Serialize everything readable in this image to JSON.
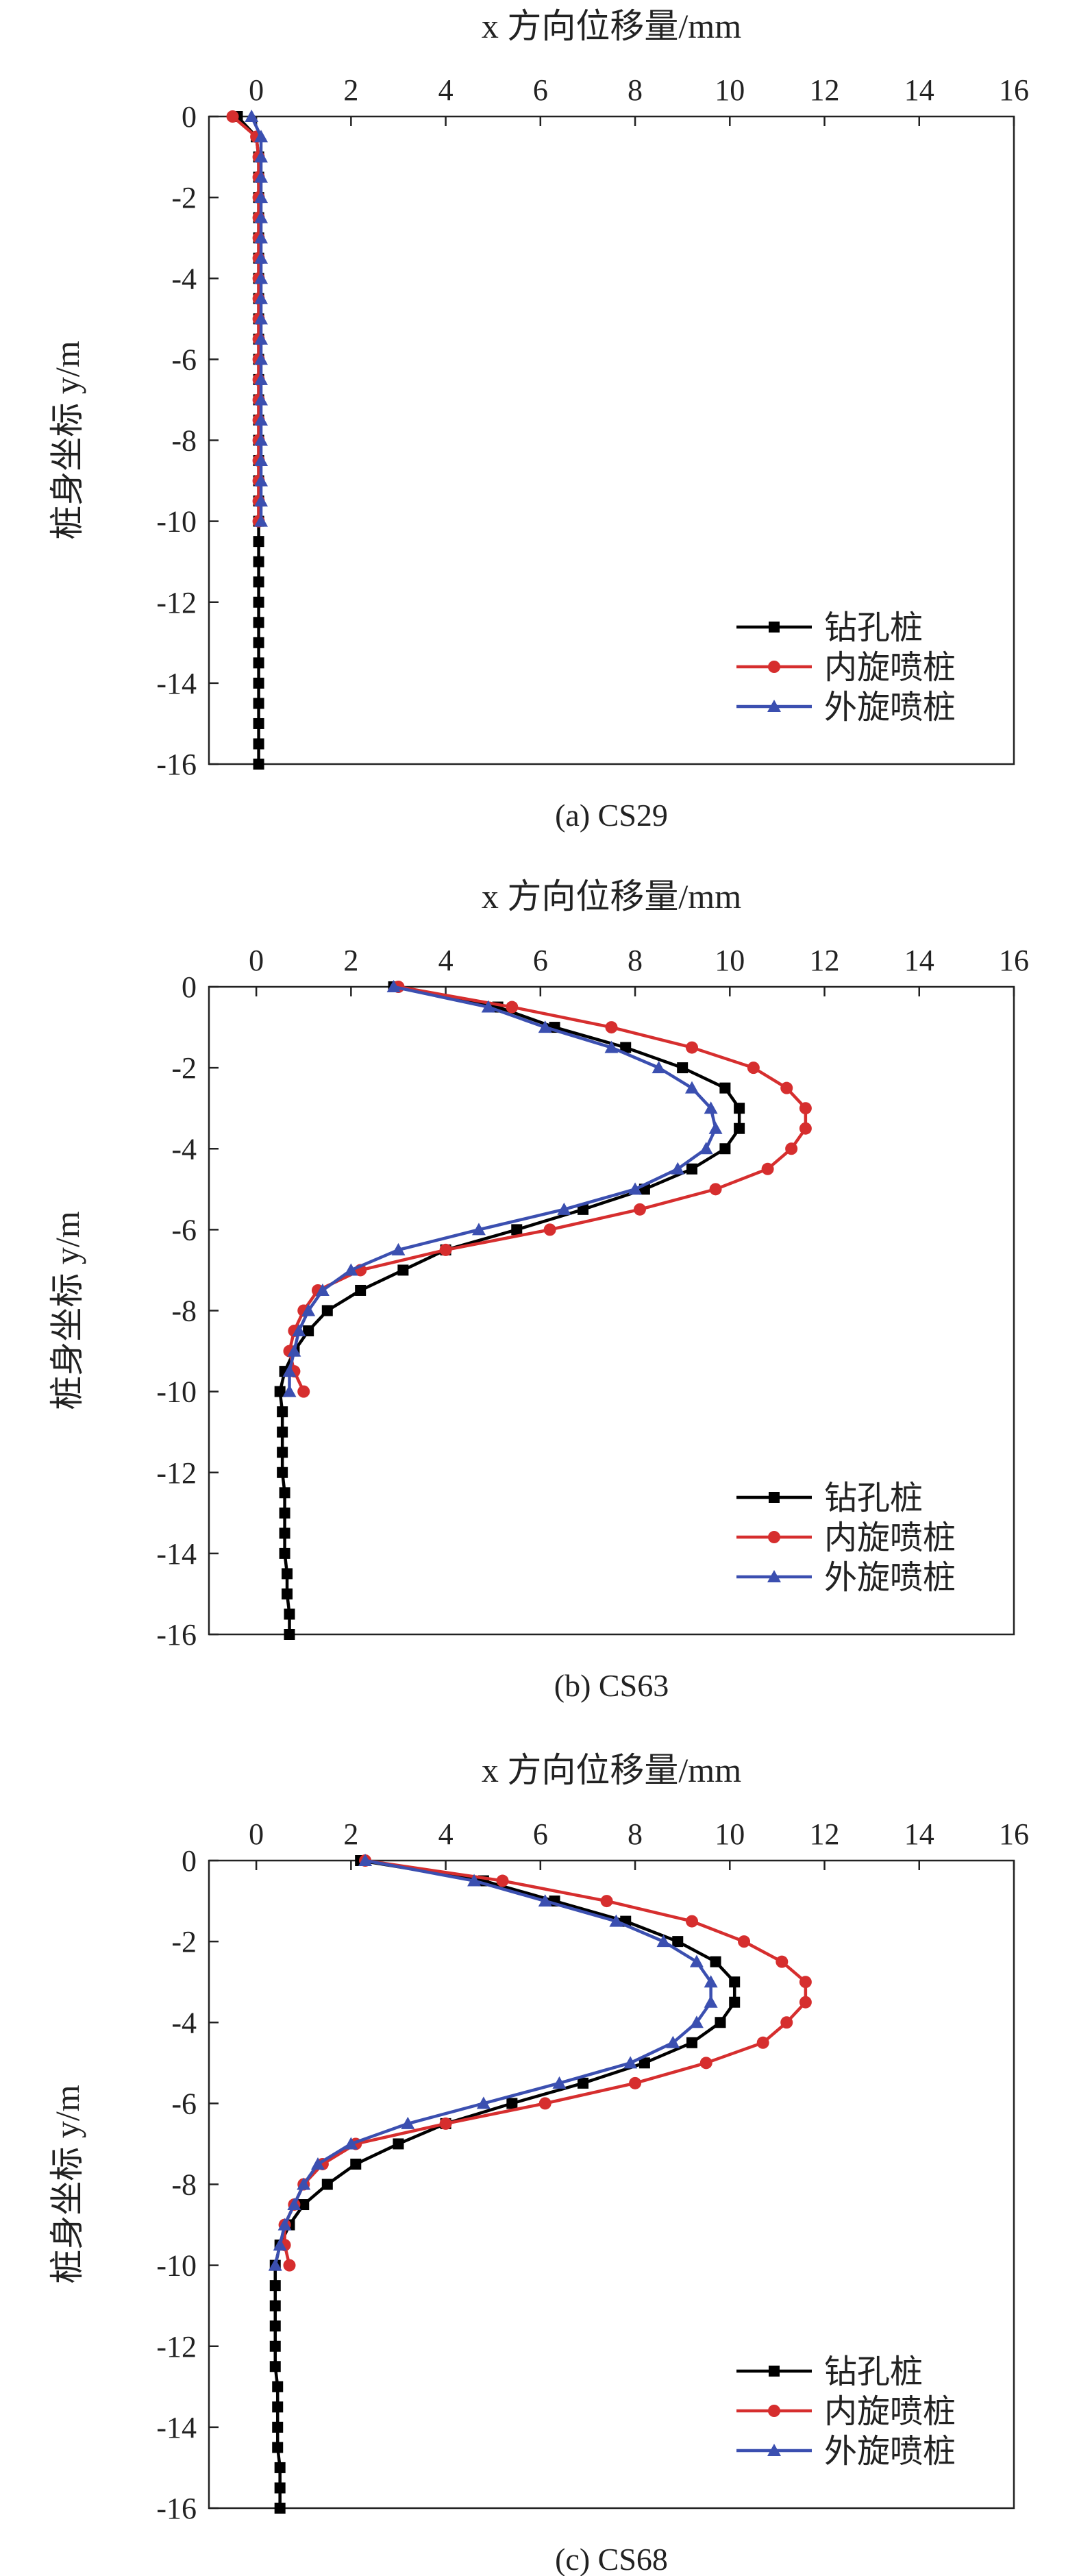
{
  "colors": {
    "钻孔桩": "#000000",
    "内旋喷桩": "#d62e2e",
    "外旋喷桩": "#3b4fb0"
  },
  "chart_data": [
    {
      "type": "line",
      "caption": "(a) CS29",
      "xlabel": "x 方向位移量/mm",
      "ylabel": "桩身坐标 y/m",
      "xlim": [
        -1,
        16
      ],
      "ylim": [
        -16,
        0
      ],
      "xticks": [
        0,
        2,
        4,
        6,
        8,
        10,
        12,
        14,
        16
      ],
      "yticks": [
        0,
        -2,
        -4,
        -6,
        -8,
        -10,
        -12,
        -14,
        -16
      ],
      "legend_position": "bottom-right",
      "series": [
        {
          "name": "钻孔桩",
          "marker": "square",
          "x": [
            -0.4,
            0.0,
            0.05,
            0.05,
            0.05,
            0.05,
            0.05,
            0.05,
            0.05,
            0.05,
            0.05,
            0.05,
            0.05,
            0.05,
            0.05,
            0.05,
            0.05,
            0.05,
            0.05,
            0.05,
            0.05,
            0.05,
            0.05,
            0.05,
            0.05,
            0.05,
            0.05,
            0.05,
            0.05,
            0.05,
            0.05,
            0.05,
            0.05
          ],
          "y": [
            0,
            -0.5,
            -1,
            -1.5,
            -2,
            -2.5,
            -3,
            -3.5,
            -4,
            -4.5,
            -5,
            -5.5,
            -6,
            -6.5,
            -7,
            -7.5,
            -8,
            -8.5,
            -9,
            -9.5,
            -10,
            -10.5,
            -11,
            -11.5,
            -12,
            -12.5,
            -13,
            -13.5,
            -14,
            -14.5,
            -15,
            -15.5,
            -16
          ]
        },
        {
          "name": "内旋喷桩",
          "marker": "circle",
          "x": [
            -0.5,
            0.0,
            0.05,
            0.05,
            0.05,
            0.05,
            0.05,
            0.05,
            0.05,
            0.05,
            0.05,
            0.05,
            0.05,
            0.05,
            0.05,
            0.05,
            0.05,
            0.05,
            0.05,
            0.05,
            0.05
          ],
          "y": [
            0,
            -0.5,
            -1,
            -1.5,
            -2,
            -2.5,
            -3,
            -3.5,
            -4,
            -4.5,
            -5,
            -5.5,
            -6,
            -6.5,
            -7,
            -7.5,
            -8,
            -8.5,
            -9,
            -9.5,
            -10
          ]
        },
        {
          "name": "外旋喷桩",
          "marker": "triangle",
          "x": [
            -0.1,
            0.1,
            0.1,
            0.1,
            0.1,
            0.1,
            0.1,
            0.1,
            0.1,
            0.1,
            0.1,
            0.1,
            0.1,
            0.1,
            0.1,
            0.1,
            0.1,
            0.1,
            0.1,
            0.1,
            0.1
          ],
          "y": [
            0,
            -0.5,
            -1,
            -1.5,
            -2,
            -2.5,
            -3,
            -3.5,
            -4,
            -4.5,
            -5,
            -5.5,
            -6,
            -6.5,
            -7,
            -7.5,
            -8,
            -8.5,
            -9,
            -9.5,
            -10
          ]
        }
      ]
    },
    {
      "type": "line",
      "caption": "(b) CS63",
      "xlabel": "x 方向位移量/mm",
      "ylabel": "桩身坐标 y/m",
      "xlim": [
        -1,
        16
      ],
      "ylim": [
        -16,
        0
      ],
      "xticks": [
        0,
        2,
        4,
        6,
        8,
        10,
        12,
        14,
        16
      ],
      "yticks": [
        0,
        -2,
        -4,
        -6,
        -8,
        -10,
        -12,
        -14,
        -16
      ],
      "legend_position": "bottom-right",
      "series": [
        {
          "name": "钻孔桩",
          "marker": "square",
          "x": [
            2.9,
            5.1,
            6.3,
            7.8,
            9.0,
            9.9,
            10.2,
            10.2,
            9.9,
            9.2,
            8.2,
            6.9,
            5.5,
            4.0,
            3.1,
            2.2,
            1.5,
            1.1,
            0.8,
            0.6,
            0.5,
            0.55,
            0.55,
            0.55,
            0.55,
            0.6,
            0.6,
            0.6,
            0.6,
            0.65,
            0.65,
            0.7,
            0.7
          ],
          "y": [
            0,
            -0.5,
            -1,
            -1.5,
            -2,
            -2.5,
            -3,
            -3.5,
            -4,
            -4.5,
            -5,
            -5.5,
            -6,
            -6.5,
            -7,
            -7.5,
            -8,
            -8.5,
            -9,
            -9.5,
            -10,
            -10.5,
            -11,
            -11.5,
            -12,
            -12.5,
            -13,
            -13.5,
            -14,
            -14.5,
            -15,
            -15.5,
            -16
          ]
        },
        {
          "name": "内旋喷桩",
          "marker": "circle",
          "x": [
            3.0,
            5.4,
            7.5,
            9.2,
            10.5,
            11.2,
            11.6,
            11.6,
            11.3,
            10.8,
            9.7,
            8.1,
            6.2,
            4.0,
            2.2,
            1.3,
            1.0,
            0.8,
            0.7,
            0.8,
            1.0
          ],
          "y": [
            0,
            -0.5,
            -1,
            -1.5,
            -2,
            -2.5,
            -3,
            -3.5,
            -4,
            -4.5,
            -5,
            -5.5,
            -6,
            -6.5,
            -7,
            -7.5,
            -8,
            -8.5,
            -9,
            -9.5,
            -10
          ]
        },
        {
          "name": "外旋喷桩",
          "marker": "triangle",
          "x": [
            2.9,
            4.9,
            6.1,
            7.5,
            8.5,
            9.2,
            9.6,
            9.7,
            9.5,
            8.9,
            8.0,
            6.5,
            4.7,
            3.0,
            2.0,
            1.4,
            1.1,
            0.9,
            0.8,
            0.7,
            0.7
          ],
          "y": [
            0,
            -0.5,
            -1,
            -1.5,
            -2,
            -2.5,
            -3,
            -3.5,
            -4,
            -4.5,
            -5,
            -5.5,
            -6,
            -6.5,
            -7,
            -7.5,
            -8,
            -8.5,
            -9,
            -9.5,
            -10
          ]
        }
      ]
    },
    {
      "type": "line",
      "caption": "(c) CS68",
      "xlabel": "x 方向位移量/mm",
      "ylabel": "桩身坐标 y/m",
      "xlim": [
        -1,
        16
      ],
      "ylim": [
        -16,
        0
      ],
      "xticks": [
        0,
        2,
        4,
        6,
        8,
        10,
        12,
        14,
        16
      ],
      "yticks": [
        0,
        -2,
        -4,
        -6,
        -8,
        -10,
        -12,
        -14,
        -16
      ],
      "legend_position": "bottom-right",
      "series": [
        {
          "name": "钻孔桩",
          "marker": "square",
          "x": [
            2.2,
            4.8,
            6.3,
            7.8,
            8.9,
            9.7,
            10.1,
            10.1,
            9.8,
            9.2,
            8.2,
            6.9,
            5.4,
            4.0,
            3.0,
            2.1,
            1.5,
            1.0,
            0.7,
            0.5,
            0.4,
            0.4,
            0.4,
            0.4,
            0.4,
            0.4,
            0.45,
            0.45,
            0.45,
            0.45,
            0.5,
            0.5,
            0.5
          ],
          "y": [
            0,
            -0.5,
            -1,
            -1.5,
            -2,
            -2.5,
            -3,
            -3.5,
            -4,
            -4.5,
            -5,
            -5.5,
            -6,
            -6.5,
            -7,
            -7.5,
            -8,
            -8.5,
            -9,
            -9.5,
            -10,
            -10.5,
            -11,
            -11.5,
            -12,
            -12.5,
            -13,
            -13.5,
            -14,
            -14.5,
            -15,
            -15.5,
            -16
          ]
        },
        {
          "name": "内旋喷桩",
          "marker": "circle",
          "x": [
            2.3,
            5.2,
            7.4,
            9.2,
            10.3,
            11.1,
            11.6,
            11.6,
            11.2,
            10.7,
            9.5,
            8.0,
            6.1,
            4.0,
            2.1,
            1.4,
            1.0,
            0.8,
            0.6,
            0.6,
            0.7
          ],
          "y": [
            0,
            -0.5,
            -1,
            -1.5,
            -2,
            -2.5,
            -3,
            -3.5,
            -4,
            -4.5,
            -5,
            -5.5,
            -6,
            -6.5,
            -7,
            -7.5,
            -8,
            -8.5,
            -9,
            -9.5,
            -10
          ]
        },
        {
          "name": "外旋喷桩",
          "marker": "triangle",
          "x": [
            2.3,
            4.6,
            6.1,
            7.6,
            8.6,
            9.3,
            9.6,
            9.6,
            9.3,
            8.8,
            7.9,
            6.4,
            4.8,
            3.2,
            2.0,
            1.3,
            1.0,
            0.8,
            0.6,
            0.5,
            0.4
          ],
          "y": [
            0,
            -0.5,
            -1,
            -1.5,
            -2,
            -2.5,
            -3,
            -3.5,
            -4,
            -4.5,
            -5,
            -5.5,
            -6,
            -6.5,
            -7,
            -7.5,
            -8,
            -8.5,
            -9,
            -9.5,
            -10
          ]
        }
      ]
    }
  ]
}
